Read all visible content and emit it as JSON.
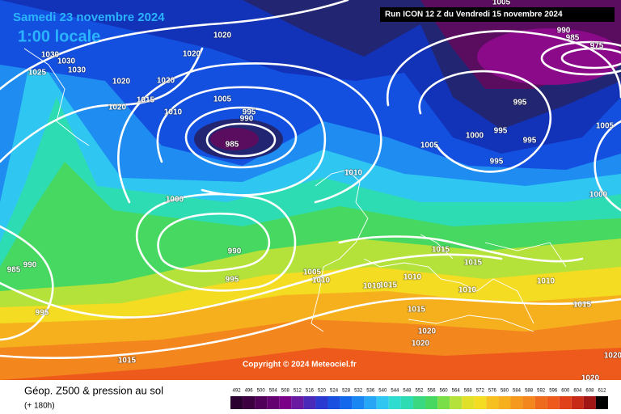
{
  "header": {
    "date": "Samedi 23 novembre 2024",
    "time": "1:00 locale",
    "run": "Run ICON 12 Z du Vendredi 15 novembre 2024"
  },
  "copyright": "Copyright © 2024 Meteociel.fr",
  "footer": {
    "title": "Géop. Z500 & pression au sol",
    "lead": "(+ 180h)"
  },
  "colorbar": {
    "labels": [
      492,
      496,
      500,
      504,
      508,
      512,
      516,
      520,
      524,
      528,
      532,
      536,
      540,
      544,
      548,
      552,
      556,
      560,
      564,
      568,
      572,
      576,
      580,
      584,
      588,
      592,
      596,
      600,
      604,
      608,
      612
    ]
  },
  "isobar_labels": [
    1020,
    1020,
    1020,
    1020,
    1015,
    1020,
    1010,
    1005,
    995,
    990,
    985,
    1000,
    990,
    995,
    985,
    990,
    995,
    1015,
    1010,
    1005,
    1010,
    1015,
    1010,
    1015,
    1015,
    1010,
    1010,
    1015,
    1020,
    1020,
    1010,
    1015,
    1005,
    1000,
    995,
    995,
    995,
    995,
    1005,
    1000,
    990,
    985,
    975,
    1005,
    1025,
    1030,
    1030,
    1030,
    1020,
    1020
  ]
}
